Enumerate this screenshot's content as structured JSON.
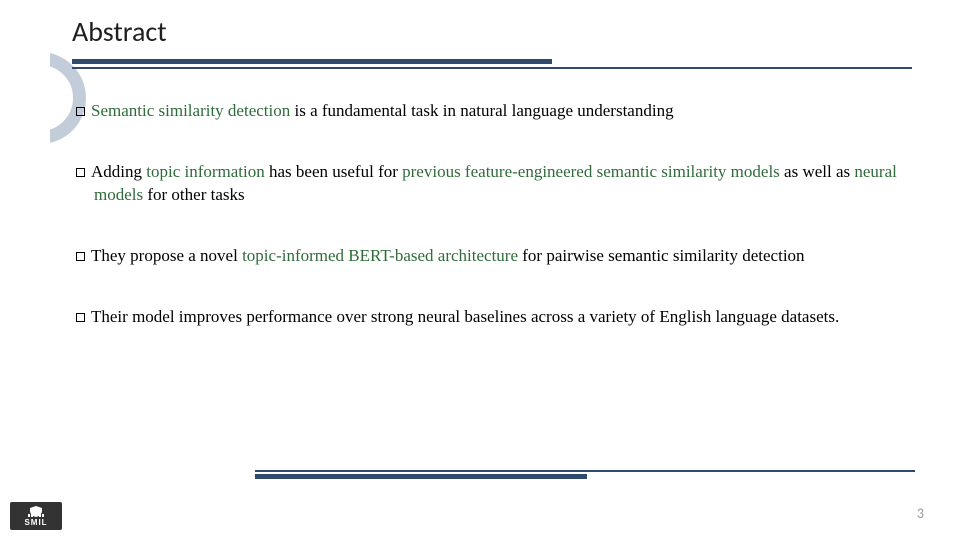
{
  "colors": {
    "accent": "#2f4a6d",
    "highlight": "#2f6b3a",
    "deco_circle": "#c3cdd9",
    "text": "#000000",
    "page_num": "#9a9a9a",
    "logo_bg": "#333333",
    "logo_fg": "#ffffff",
    "background": "#ffffff"
  },
  "title": "Abstract",
  "bullets": [
    {
      "segments": [
        {
          "t": "Semantic similarity detection",
          "hl": true
        },
        {
          "t": " is a fundamental task in natural language understanding",
          "hl": false
        }
      ]
    },
    {
      "segments": [
        {
          "t": "Adding ",
          "hl": false
        },
        {
          "t": "topic information",
          "hl": true
        },
        {
          "t": " has been useful for ",
          "hl": false
        },
        {
          "t": "previous feature-engineered semantic similarity models",
          "hl": true
        },
        {
          "t": " as well as ",
          "hl": false
        },
        {
          "t": "neural models",
          "hl": true
        },
        {
          "t": " for other tasks",
          "hl": false
        }
      ]
    },
    {
      "segments": [
        {
          "t": "They propose a novel ",
          "hl": false
        },
        {
          "t": "topic-informed BERT-based architecture",
          "hl": true
        },
        {
          "t": " for pairwise semantic similarity detection",
          "hl": false
        }
      ]
    },
    {
      "segments": [
        {
          "t": "Their model improves performance over strong neural baselines across a variety of English language datasets.",
          "hl": false
        }
      ]
    }
  ],
  "logo_text": "SMIL",
  "page_number": "3",
  "layout": {
    "slide_w": 960,
    "slide_h": 540,
    "title_fontsize": 28,
    "title_font": "Calibri",
    "body_fontsize": 17,
    "body_font": "Times New Roman",
    "bullet_spacing": 38,
    "title_rule_thick_w": 480,
    "title_rule_thin_w": 840,
    "footer_rule_thick_w": 332,
    "footer_rule_thin_w": 660,
    "deco_circle_d": 92,
    "deco_circle_border": 13
  }
}
